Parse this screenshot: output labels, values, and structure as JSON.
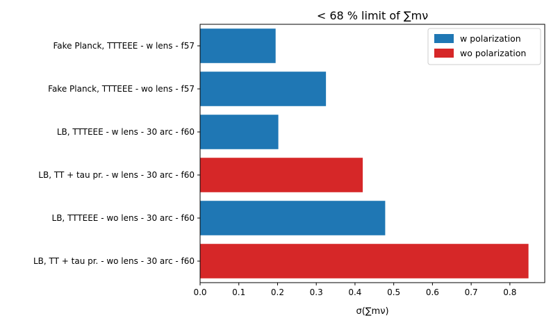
{
  "chart_data": {
    "type": "bar",
    "orientation": "horizontal",
    "title": "< 68 % limit of ∑mν",
    "xlabel": "σ(∑mν)",
    "ylabel": "",
    "xlim": [
      0,
      0.89
    ],
    "xticks": [
      "0.0",
      "0.1",
      "0.2",
      "0.3",
      "0.4",
      "0.5",
      "0.6",
      "0.7",
      "0.8"
    ],
    "grid": false,
    "legend_position": "top-right",
    "legend": [
      {
        "label": "w polarization",
        "color": "#1f77b4"
      },
      {
        "label": "wo polarization",
        "color": "#d62728"
      }
    ],
    "bars": [
      {
        "label": "Fake Planck, TTTEEE - w lens - f57",
        "value": 0.195,
        "group": "w polarization"
      },
      {
        "label": "Fake Planck, TTTEEE - wo lens - f57",
        "value": 0.325,
        "group": "w polarization"
      },
      {
        "label": "LB, TTTEEE - w lens - 30 arc - f60",
        "value": 0.202,
        "group": "w polarization"
      },
      {
        "label": "LB, TT + tau pr. - w lens - 30 arc - f60",
        "value": 0.42,
        "group": "wo polarization"
      },
      {
        "label": "LB, TTTEEE - wo lens - 30 arc - f60",
        "value": 0.478,
        "group": "w polarization"
      },
      {
        "label": "LB, TT + tau pr. - wo lens - 30 arc - f60",
        "value": 0.848,
        "group": "wo polarization"
      }
    ]
  }
}
